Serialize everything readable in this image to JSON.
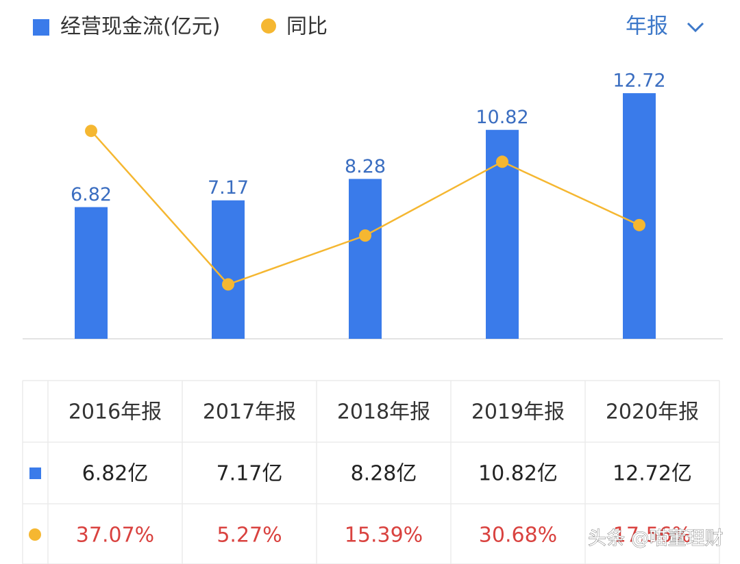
{
  "chart_data": {
    "type": "bar_line",
    "categories": [
      "2016年报",
      "2017年报",
      "2018年报",
      "2019年报",
      "2020年报"
    ],
    "series": [
      {
        "name": "经营现金流(亿元)",
        "type": "bar",
        "color": "#3a7bea",
        "values": [
          6.82,
          7.17,
          8.28,
          10.82,
          12.72
        ],
        "value_labels": [
          "6.82亿",
          "7.17亿",
          "8.28亿",
          "10.82亿",
          "12.72亿"
        ]
      },
      {
        "name": "同比",
        "type": "line",
        "axis": "y2",
        "color": "#f5b731",
        "values": [
          37.07,
          5.27,
          15.39,
          30.68,
          17.56
        ],
        "value_labels": [
          "37.07%",
          "5.27%",
          "15.39%",
          "30.68%",
          "17.56%"
        ]
      }
    ],
    "ylim": [
      0,
      14
    ],
    "y2lim": [
      -6,
      50
    ],
    "grid": false,
    "legend": "top-left"
  },
  "period_selector": "年报",
  "watermark": "头条 @喵董理财"
}
